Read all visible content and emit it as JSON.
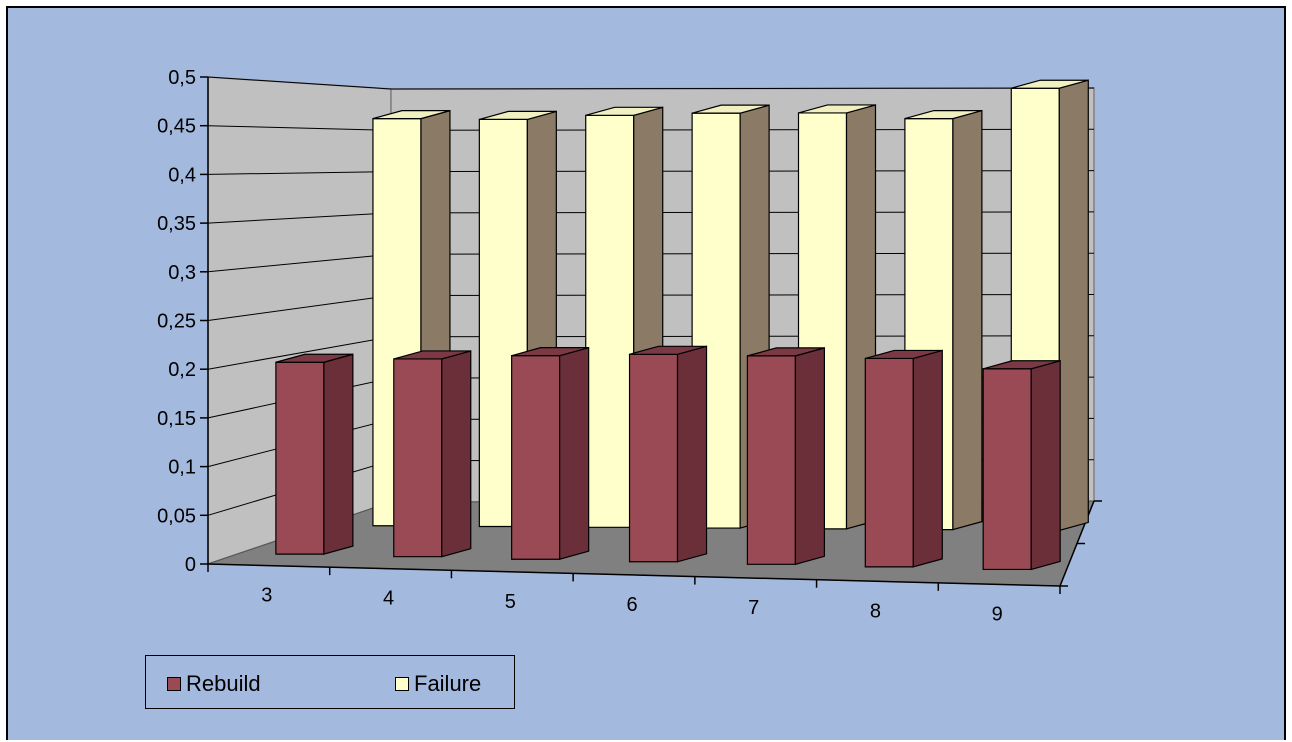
{
  "chart_data": {
    "type": "bar",
    "categories": [
      "3",
      "4",
      "5",
      "6",
      "7",
      "8",
      "9"
    ],
    "series": [
      {
        "name": "Rebuild",
        "color": "#994a55",
        "values": [
          0.197,
          0.203,
          0.209,
          0.213,
          0.214,
          0.214,
          0.206
        ]
      },
      {
        "name": "Failure",
        "color": "#ffffcc",
        "values": [
          0.418,
          0.418,
          0.423,
          0.426,
          0.427,
          0.422,
          0.454
        ]
      }
    ],
    "yticks": [
      "0",
      "0,05",
      "0,1",
      "0,15",
      "0,2",
      "0,25",
      "0,3",
      "0,35",
      "0,4",
      "0,45",
      "0,5"
    ],
    "ylim": [
      0,
      0.5
    ],
    "legend_position": "bottom-left",
    "grid": true,
    "colors": {
      "background": "#a4b9de",
      "wall": "#c0c0c0",
      "floor": "#808080",
      "gridline": "#000000",
      "rebuild_side": "#6b2f3a",
      "rebuild_top": "#7a3945",
      "failure_side": "#8a7a66",
      "failure_top": "#f0f0c0"
    }
  }
}
